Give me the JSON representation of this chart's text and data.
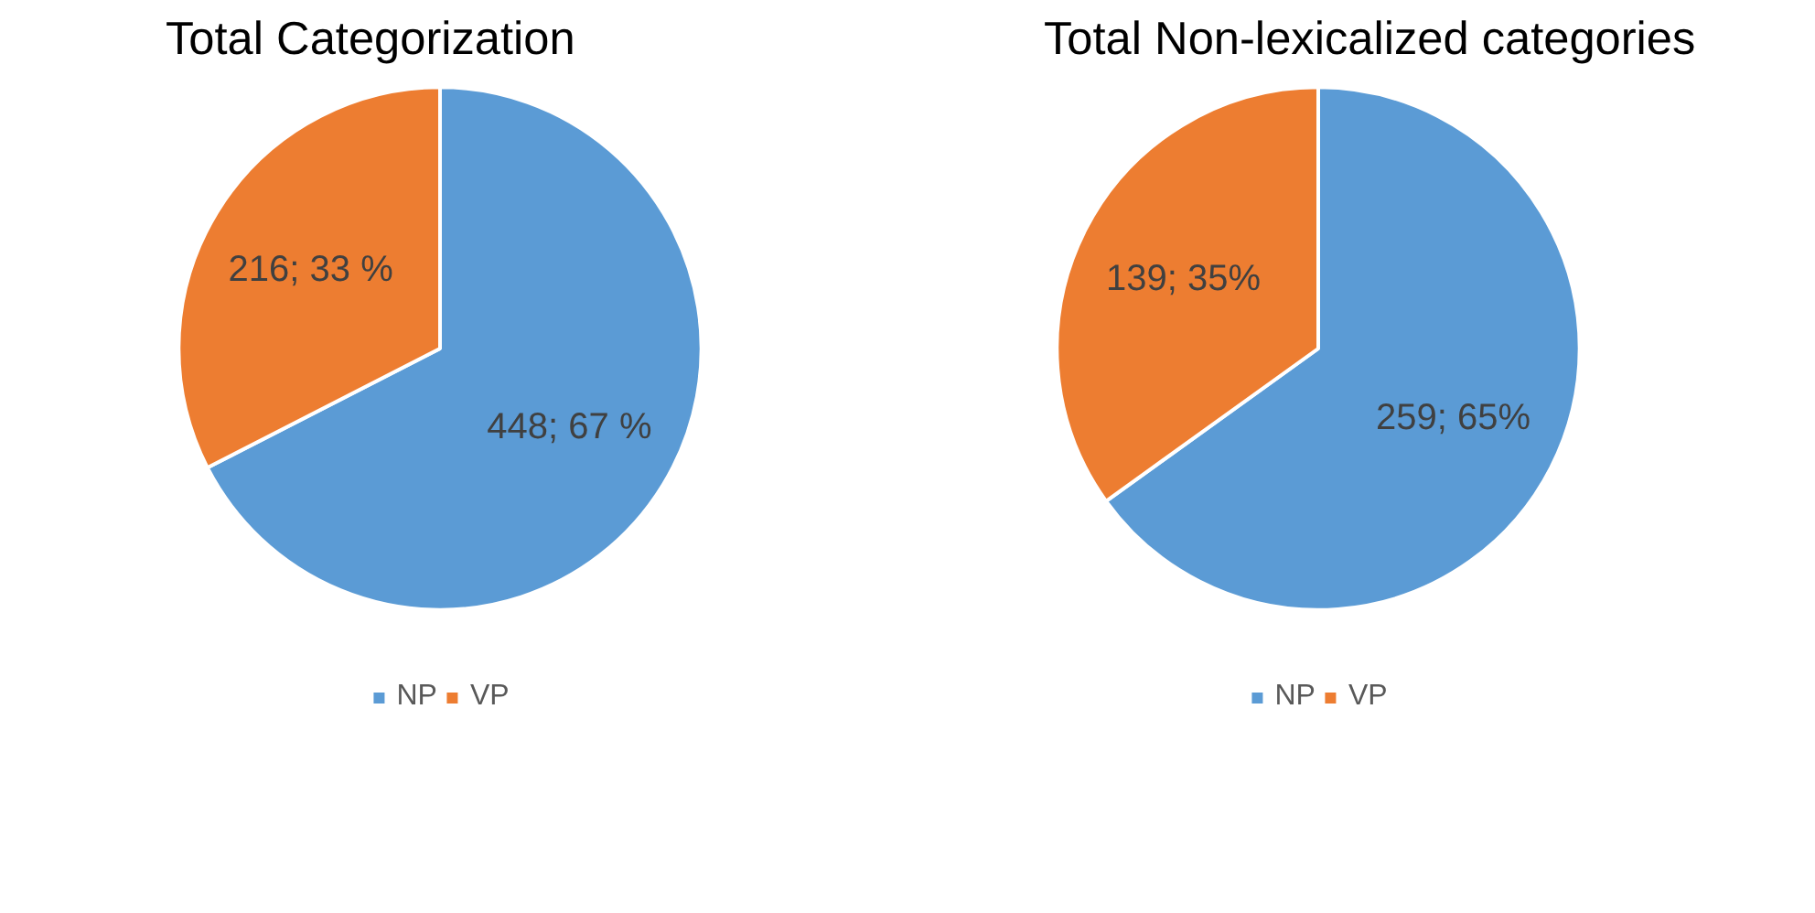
{
  "chart_data": [
    {
      "type": "pie",
      "title": "Total Categorization",
      "categories": [
        "NP",
        "VP"
      ],
      "values": [
        448,
        216
      ],
      "colors": [
        "#5b9bd5",
        "#ed7d31"
      ],
      "value_labels": [
        "448; 67 %",
        "216; 33 %"
      ],
      "legend": "bottom"
    },
    {
      "type": "pie",
      "title": "Total Non-lexicalized categories",
      "categories": [
        "NP",
        "VP"
      ],
      "values": [
        259,
        139
      ],
      "colors": [
        "#5b9bd5",
        "#ed7d31"
      ],
      "value_labels": [
        "259; 65%",
        "139; 35%"
      ],
      "legend": "bottom"
    }
  ]
}
